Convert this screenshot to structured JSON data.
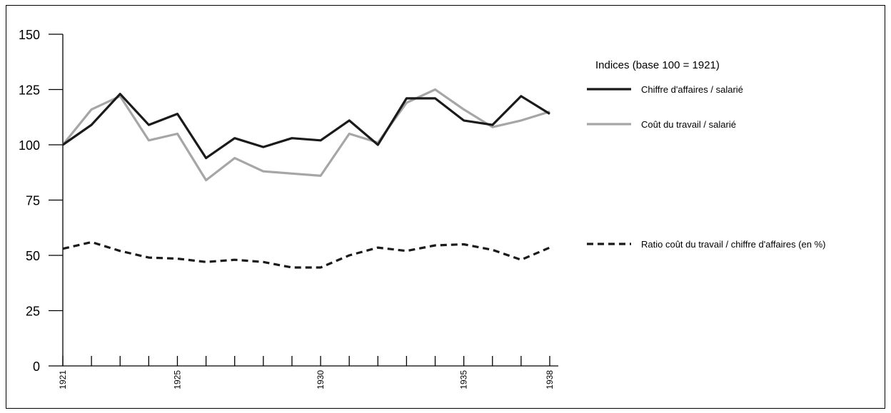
{
  "chart_data": {
    "type": "line",
    "legend_title": "Indices (base 100 = 1921)",
    "legend_position": "right",
    "grid": false,
    "x": [
      1921,
      1922,
      1923,
      1924,
      1925,
      1926,
      1927,
      1928,
      1929,
      1930,
      1931,
      1932,
      1933,
      1934,
      1935,
      1936,
      1937,
      1938
    ],
    "x_tick_labels": [
      "1921",
      "1925",
      "1930",
      "1935",
      "1938"
    ],
    "xlim": [
      1921,
      1938
    ],
    "ylim": [
      0,
      150
    ],
    "y_ticks": [
      0,
      25,
      50,
      75,
      100,
      125,
      150
    ],
    "series": [
      {
        "name": "Chiffre d'affaires / salarié",
        "color": "#1a1a1a",
        "style": "solid",
        "values": [
          100,
          109,
          123,
          109,
          114,
          94,
          103,
          99,
          103,
          102,
          111,
          100,
          121,
          121,
          111,
          109,
          122,
          114
        ]
      },
      {
        "name": "Coût du travail / salarié",
        "color": "#a6a6a6",
        "style": "solid",
        "values": [
          100,
          116,
          122,
          102,
          105,
          84,
          94,
          88,
          87,
          86,
          105,
          101,
          119,
          125,
          116,
          108,
          111,
          115
        ]
      },
      {
        "name": "Ratio coût du travail / chiffre d'affaires (en %)",
        "color": "#1a1a1a",
        "style": "dashed",
        "values": [
          53,
          56,
          52,
          49,
          48.5,
          47,
          48,
          47,
          44.5,
          44.5,
          50,
          53.5,
          52,
          54.5,
          55,
          52.5,
          48,
          53.5
        ]
      }
    ]
  }
}
